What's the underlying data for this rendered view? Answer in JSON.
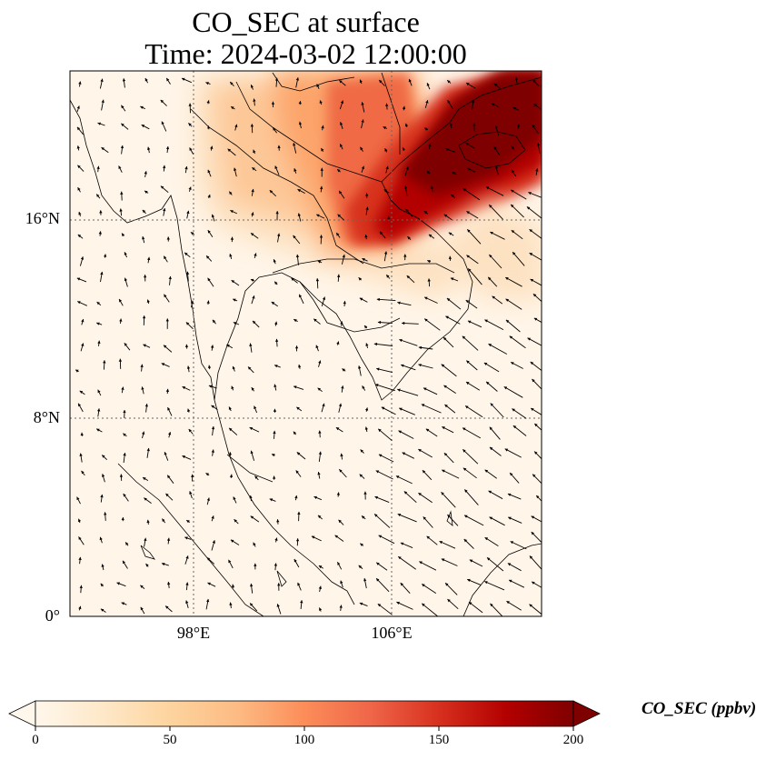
{
  "title": {
    "line1": "CO_SEC at surface",
    "line2": "Time: 2024-03-02 12:00:00"
  },
  "map": {
    "region": "Southeast Asia (Indochina and Malay Peninsula)",
    "projection": "PlateCarree",
    "extent": {
      "lon_min": 93,
      "lon_max": 112,
      "lat_min": 0,
      "lat_max": 22
    },
    "gridlines": {
      "style": "dotted",
      "lons": [
        98,
        106
      ],
      "lats": [
        8,
        16
      ]
    },
    "lat_labels": [
      "16°N",
      "8°N",
      "0°"
    ],
    "lon_labels": [
      "98°E",
      "106°E"
    ],
    "field": {
      "variable": "CO_SEC",
      "unit": "ppbv",
      "features": [
        {
          "description": "high plume over northern Vietnam / Laos",
          "peak_value": 200
        },
        {
          "description": "moderate plume over northern Thailand / Myanmar",
          "peak_value": 60
        }
      ]
    },
    "wind_vectors": {
      "shown": true,
      "color": "#000000",
      "pattern": "northeasterly over South China Sea, weak flow over land"
    },
    "coastline_color": "#000000"
  },
  "colorbar": {
    "cmap": "OrRd",
    "min": 0,
    "max": 200,
    "extend": "both",
    "ticks": [
      "0",
      "50",
      "100",
      "150",
      "200"
    ],
    "label": "CO_SEC (ppbv)",
    "colors": [
      "#fff7ec",
      "#fee8c8",
      "#fdd49e",
      "#fdbb84",
      "#fc8d59",
      "#ef6548",
      "#d7301f",
      "#b30000",
      "#7f0000"
    ]
  }
}
